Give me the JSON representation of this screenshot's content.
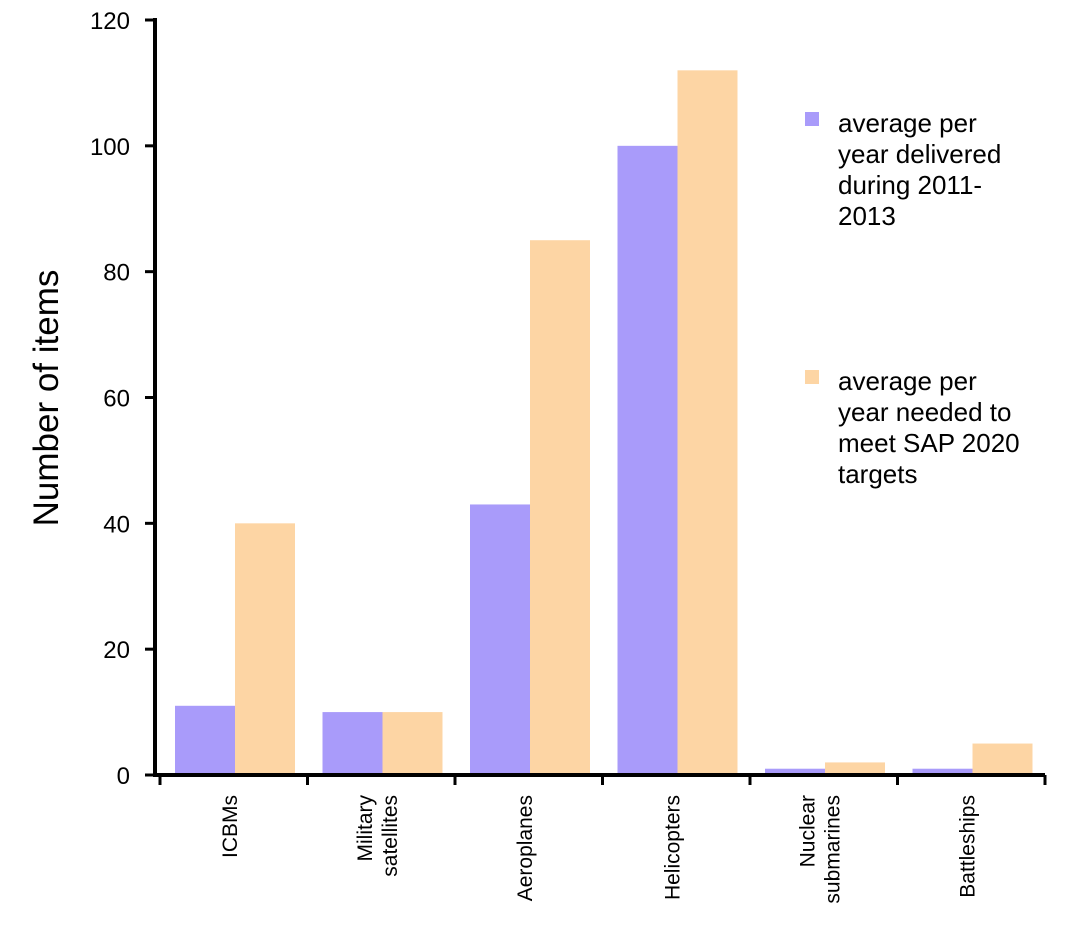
{
  "chart_data": {
    "type": "bar",
    "title": "",
    "xlabel": "",
    "ylabel": "Number of items",
    "ylim": [
      0,
      120
    ],
    "yticks": [
      0,
      20,
      40,
      60,
      80,
      100,
      120
    ],
    "grid": false,
    "legend_position": "right",
    "categories": [
      [
        "ICBMs"
      ],
      [
        "Military",
        "satellites"
      ],
      [
        "Aeroplanes"
      ],
      [
        "Helicopters"
      ],
      [
        "Nuclear",
        "submarines"
      ],
      [
        "Battleships"
      ]
    ],
    "series": [
      {
        "name": [
          "average per",
          "year delivered",
          "during 2011-",
          "2013"
        ],
        "color": "#a99bfa",
        "values": [
          11,
          10,
          43,
          100,
          1,
          1
        ]
      },
      {
        "name": [
          "average per",
          "year needed to",
          "meet SAP 2020",
          "targets"
        ],
        "color": "#fdd5a4",
        "values": [
          40,
          10,
          85,
          112,
          2,
          5
        ]
      }
    ]
  }
}
